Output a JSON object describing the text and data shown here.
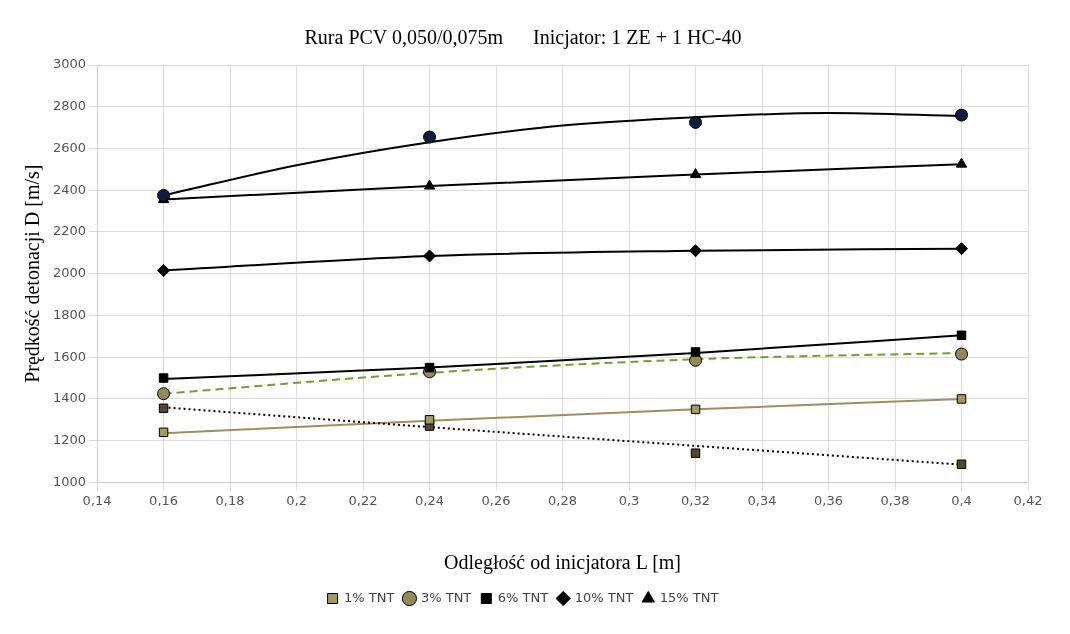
{
  "chart_data": {
    "type": "scatter",
    "title": "Rura PCV 0,050/0,075m      Inicjator: 1 ZE + 1 HC-40",
    "xlabel": "Odległość od inicjatora L [m]",
    "ylabel": "Prędkość detonacji D [m/s]",
    "x": [
      0.16,
      0.24,
      0.32,
      0.4
    ],
    "series": [
      {
        "type": "scatter",
        "color": "#4d4a2e",
        "marker": "square",
        "values": [
          1355,
          1270,
          1140,
          1087
        ]
      },
      {
        "type": "scatter",
        "name": "1% TNT",
        "color": "#a39a5e",
        "marker": "square",
        "values": [
          1240,
          1300,
          1350,
          1400
        ]
      },
      {
        "type": "scatter",
        "name": "3% TNT",
        "color": "#938a56",
        "marker": "circle",
        "values": [
          1425,
          1530,
          1585,
          1615
        ]
      },
      {
        "type": "scatter",
        "name": "6% TNT",
        "color": "#000000",
        "marker": "square",
        "values": [
          1500,
          1550,
          1625,
          1705
        ]
      },
      {
        "type": "scatter",
        "name": "10% TNT",
        "color": "#000000",
        "marker": "diamond",
        "values": [
          2015,
          2085,
          2110,
          2120
        ]
      },
      {
        "type": "scatter",
        "name": "15% TNT",
        "color": "#000000",
        "marker": "triangle",
        "values": [
          2355,
          2420,
          2475,
          2525
        ]
      },
      {
        "type": "scatter",
        "color": "#0d1b3e",
        "marker": "circle",
        "values": [
          2375,
          2655,
          2725,
          2760
        ]
      },
      {
        "type": "line",
        "color": "#000000",
        "line_style": "dotted",
        "marker": "none",
        "x": [
          0.16,
          0.24,
          0.32,
          0.4
        ],
        "values": [
          1360,
          1265,
          1175,
          1085
        ]
      },
      {
        "type": "line",
        "color": "#9b9060",
        "line_style": "solid",
        "marker": "none",
        "x": [
          0.16,
          0.24,
          0.32,
          0.4
        ],
        "values": [
          1235,
          1295,
          1350,
          1400
        ]
      },
      {
        "type": "line",
        "color": "#70a030",
        "line_style": "dashed",
        "marker": "none",
        "x": [
          0.16,
          0.24,
          0.32,
          0.4
        ],
        "values": [
          1425,
          1525,
          1590,
          1620
        ]
      },
      {
        "type": "line",
        "color": "#000000",
        "line_style": "solid",
        "marker": "none",
        "x": [
          0.16,
          0.24,
          0.32,
          0.4
        ],
        "values": [
          1495,
          1550,
          1620,
          1705
        ]
      },
      {
        "type": "line",
        "color": "#000000",
        "line_style": "solid",
        "marker": "none",
        "x": [
          0.16,
          0.24,
          0.32,
          0.4
        ],
        "values": [
          2015,
          2085,
          2110,
          2120
        ]
      },
      {
        "type": "line",
        "color": "#000000",
        "line_style": "solid",
        "marker": "none",
        "x": [
          0.16,
          0.24,
          0.32,
          0.4
        ],
        "values": [
          2355,
          2420,
          2475,
          2525
        ]
      },
      {
        "type": "line",
        "color": "#000000",
        "line_style": "solid",
        "marker": "none",
        "x": [
          0.16,
          0.2,
          0.24,
          0.28,
          0.32,
          0.36,
          0.4
        ],
        "values": [
          2375,
          2520,
          2630,
          2710,
          2750,
          2770,
          2755
        ]
      }
    ],
    "xlim": [
      0.14,
      0.42
    ],
    "xticks": [
      {
        "value": 0.14,
        "label": "0,14"
      },
      {
        "value": 0.16,
        "label": "0,16"
      },
      {
        "value": 0.18,
        "label": "0,18"
      },
      {
        "value": 0.2,
        "label": "0,2"
      },
      {
        "value": 0.22,
        "label": "0,22"
      },
      {
        "value": 0.24,
        "label": "0,24"
      },
      {
        "value": 0.26,
        "label": "0,26"
      },
      {
        "value": 0.28,
        "label": "0,28"
      },
      {
        "value": 0.3,
        "label": "0,3"
      },
      {
        "value": 0.32,
        "label": "0,32"
      },
      {
        "value": 0.34,
        "label": "0,34"
      },
      {
        "value": 0.36,
        "label": "0,36"
      },
      {
        "value": 0.38,
        "label": "0,38"
      },
      {
        "value": 0.4,
        "label": "0,4"
      },
      {
        "value": 0.42,
        "label": "0,42"
      }
    ],
    "ylim": [
      1000,
      3000
    ],
    "yticks": [
      1000,
      1200,
      1400,
      1600,
      1800,
      2000,
      2200,
      2400,
      2600,
      2800,
      3000
    ],
    "grid": true,
    "legend": "bottom"
  }
}
